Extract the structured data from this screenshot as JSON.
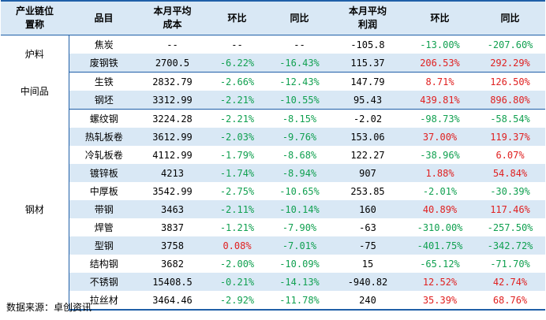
{
  "headers": {
    "industry_chain": "产业链位置称",
    "industry_chain_line1": "产业链位",
    "industry_chain_line2": "置称",
    "product": "品目",
    "cost_line1": "本月平均",
    "cost_line2": "成本",
    "cost_mom": "环比",
    "cost_yoy": "同比",
    "profit_line1": "本月平均",
    "profit_line2": "利润",
    "profit_mom": "环比",
    "profit_yoy": "同比"
  },
  "groups": [
    {
      "category": "炉料",
      "rows": [
        {
          "name": "焦炭",
          "cost": "--",
          "cost_mom": "--",
          "cost_yoy": "--",
          "profit": "-105.8",
          "profit_mom": "-13.00%",
          "profit_yoy": "-207.60%"
        },
        {
          "name": "废钢铁",
          "cost": "2700.5",
          "cost_mom": "-6.22%",
          "cost_yoy": "-16.43%",
          "profit": "115.37",
          "profit_mom": "206.53%",
          "profit_yoy": "292.29%"
        }
      ]
    },
    {
      "category": "中间品",
      "rows": [
        {
          "name": "生铁",
          "cost": "2832.79",
          "cost_mom": "-2.66%",
          "cost_yoy": "-12.43%",
          "profit": "147.79",
          "profit_mom": "8.71%",
          "profit_yoy": "126.50%"
        },
        {
          "name": "钢坯",
          "cost": "3312.99",
          "cost_mom": "-2.21%",
          "cost_yoy": "-10.55%",
          "profit": "95.43",
          "profit_mom": "439.81%",
          "profit_yoy": "896.80%"
        }
      ]
    },
    {
      "category": "钢材",
      "rows": [
        {
          "name": "螺纹钢",
          "cost": "3224.28",
          "cost_mom": "-2.21%",
          "cost_yoy": "-8.15%",
          "profit": "-2.02",
          "profit_mom": "-98.73%",
          "profit_yoy": "-58.54%"
        },
        {
          "name": "热轧板卷",
          "cost": "3612.99",
          "cost_mom": "-2.03%",
          "cost_yoy": "-9.76%",
          "profit": "153.06",
          "profit_mom": "37.00%",
          "profit_yoy": "119.37%"
        },
        {
          "name": "冷轧板卷",
          "cost": "4112.99",
          "cost_mom": "-1.79%",
          "cost_yoy": "-8.68%",
          "profit": "122.27",
          "profit_mom": "-38.96%",
          "profit_yoy": "6.07%"
        },
        {
          "name": "镀锌板",
          "cost": "4213",
          "cost_mom": "-1.74%",
          "cost_yoy": "-8.94%",
          "profit": "907",
          "profit_mom": "1.88%",
          "profit_yoy": "54.84%"
        },
        {
          "name": "中厚板",
          "cost": "3542.99",
          "cost_mom": "-2.75%",
          "cost_yoy": "-10.65%",
          "profit": "253.85",
          "profit_mom": "-2.01%",
          "profit_yoy": "-30.39%"
        },
        {
          "name": "带钢",
          "cost": "3463",
          "cost_mom": "-2.11%",
          "cost_yoy": "-10.14%",
          "profit": "160",
          "profit_mom": "40.89%",
          "profit_yoy": "117.46%"
        },
        {
          "name": "焊管",
          "cost": "3837",
          "cost_mom": "-1.21%",
          "cost_yoy": "-7.90%",
          "profit": "-63",
          "profit_mom": "-310.00%",
          "profit_yoy": "-257.50%"
        },
        {
          "name": "型钢",
          "cost": "3758",
          "cost_mom": "0.08%",
          "cost_yoy": "-7.01%",
          "profit": "-75",
          "profit_mom": "-401.75%",
          "profit_yoy": "-342.72%"
        },
        {
          "name": "结构钢",
          "cost": "3682",
          "cost_mom": "-2.00%",
          "cost_yoy": "-10.09%",
          "profit": "15",
          "profit_mom": "-65.12%",
          "profit_yoy": "-71.70%"
        },
        {
          "name": "不锈钢",
          "cost": "15408.5",
          "cost_mom": "-0.21%",
          "cost_yoy": "-14.13%",
          "profit": "-940.82",
          "profit_mom": "12.52%",
          "profit_yoy": "42.74%"
        },
        {
          "name": "拉丝材",
          "cost": "3464.46",
          "cost_mom": "-2.92%",
          "cost_yoy": "-11.78%",
          "profit": "240",
          "profit_mom": "35.39%",
          "profit_yoy": "68.76%"
        }
      ]
    }
  ],
  "colors": {
    "header_bg": "#d9e8f5",
    "border": "#1f5fa8",
    "positive": "#e02020",
    "negative": "#10a050"
  },
  "source": "数据来源：卓创资讯"
}
